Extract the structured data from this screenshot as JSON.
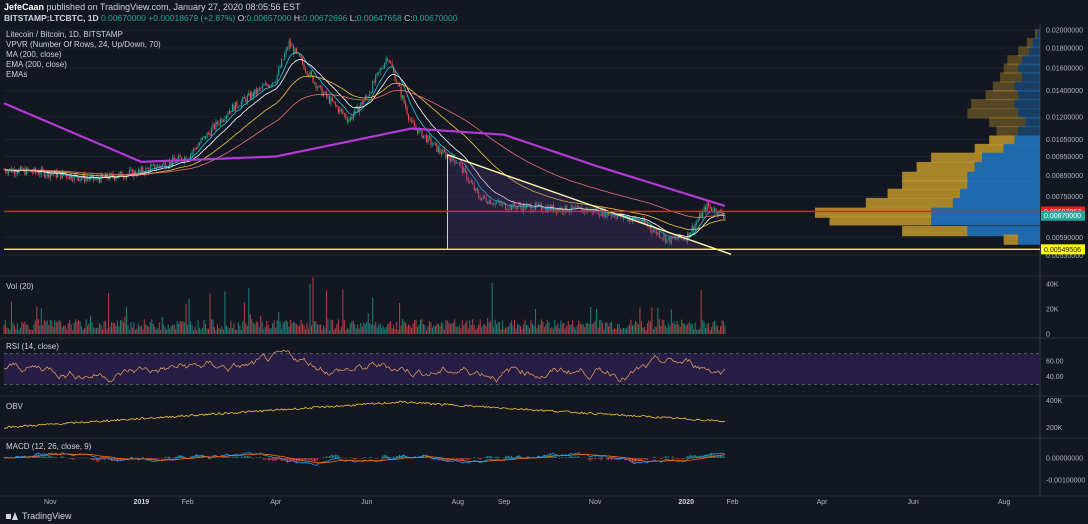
{
  "header": {
    "author": "JefeCaan",
    "published_text": "published on TradingView.com, January 27, 2020 08:05:56 EST",
    "symbol": "BITSTAMP:LTCBTC, 1D",
    "price": "0.00670000",
    "change": "+0.00018679 (+2.87%)",
    "ohlc_o_label": "O:",
    "ohlc_o": "0.00657000",
    "ohlc_h_label": "H:",
    "ohlc_h": "0.00672696",
    "ohlc_l_label": "L:",
    "ohlc_l": "0.00647658",
    "ohlc_c_label": "C:",
    "ohlc_c": "0.00670000"
  },
  "legend": {
    "title": "Litecoin / Bitcoin, 1D, BITSTAMP",
    "vpvr": "VPVR (Number Of Rows, 24, Up/Down, 70)",
    "ma": "MA (200, close)",
    "ema": "EMA (200, close)",
    "emas": "EMAs"
  },
  "panes": {
    "vol_label": "Vol (20)",
    "rsi_label": "RSI (14, close)",
    "obv_label": "OBV",
    "macd_label": "MACD (12, 26, close, 9)"
  },
  "footer": {
    "brand": "TradingView"
  },
  "colors": {
    "background": "#131722",
    "up": "#26a69a",
    "down": "#ef5350",
    "ma_purple": "#b33ad6",
    "red_line": "#ff1a1a",
    "yellow_line": "#ffff00",
    "vpvr_up": "#1f6fb5",
    "vpvr_down": "#b8902a"
  },
  "chart_data": {
    "type": "candlestick",
    "title": "Litecoin / Bitcoin, 1D, BITSTAMP",
    "x_ticks": [
      "Nov",
      "2019",
      "Feb",
      "Apr",
      "Jun",
      "Aug",
      "Sep",
      "Nov",
      "2020",
      "Feb",
      "Apr",
      "Jun",
      "Aug"
    ],
    "x_tick_dates": [
      "2018-11-01",
      "2019-01-01",
      "2019-02-01",
      "2019-04-01",
      "2019-06-01",
      "2019-08-01",
      "2019-09-01",
      "2019-11-01",
      "2020-01-01",
      "2020-02-01",
      "2020-04-01",
      "2020-06-01",
      "2020-08-01"
    ],
    "price_axis": {
      "ticks": [
        "0.02000000",
        "0.01800000",
        "0.01600000",
        "0.01400000",
        "0.01200000",
        "0.01050000",
        "0.00950000",
        "0.00850000",
        "0.00750000",
        "0.00590000",
        "0.00530000"
      ],
      "scale": "log",
      "range": [
        0.0051,
        0.0205
      ]
    },
    "price_labels": [
      {
        "value": "0.00687067",
        "color": "#ff1a1a"
      },
      {
        "value": "0.00670000",
        "color": "#26a69a"
      },
      {
        "value": "0.00549506",
        "color": "#ffff00"
      }
    ],
    "close_series_approx": {
      "dates": [
        "2018-10-01",
        "2018-11-01",
        "2018-12-01",
        "2019-01-01",
        "2019-02-01",
        "2019-03-01",
        "2019-04-01",
        "2019-04-10",
        "2019-05-01",
        "2019-05-20",
        "2019-06-01",
        "2019-06-15",
        "2019-07-01",
        "2019-07-20",
        "2019-08-01",
        "2019-08-15",
        "2019-09-01",
        "2019-10-01",
        "2019-11-01",
        "2019-12-01",
        "2019-12-20",
        "2020-01-01",
        "2020-01-15",
        "2020-01-27"
      ],
      "values": [
        0.0088,
        0.0086,
        0.0083,
        0.0087,
        0.0095,
        0.0125,
        0.015,
        0.0185,
        0.014,
        0.0118,
        0.0135,
        0.0172,
        0.0115,
        0.0098,
        0.0092,
        0.0075,
        0.0071,
        0.007,
        0.0069,
        0.0065,
        0.0058,
        0.0059,
        0.0071,
        0.0067
      ]
    },
    "ma200_approx": {
      "dates": [
        "2018-10-01",
        "2019-01-01",
        "2019-04-01",
        "2019-07-01",
        "2019-09-01",
        "2019-11-01",
        "2020-01-27"
      ],
      "values": [
        0.013,
        0.0092,
        0.0095,
        0.0112,
        0.0108,
        0.009,
        0.0071
      ]
    },
    "horizontal_levels": [
      {
        "value": 0.00687067,
        "color": "#ff1a1a"
      },
      {
        "value": 0.00549506,
        "color": "#ffff00"
      }
    ],
    "trendline": {
      "from": [
        "2019-07-25",
        0.0096
      ],
      "to": [
        "2020-01-27",
        0.0054
      ]
    },
    "vpvr_rows": {
      "prices": [
        0.0195,
        0.0185,
        0.0176,
        0.0167,
        0.0159,
        0.0151,
        0.0143,
        0.0136,
        0.0129,
        0.0122,
        0.0116,
        0.011,
        0.0104,
        0.0099,
        0.0094,
        0.0089,
        0.0084,
        0.008,
        0.0076,
        0.0072,
        0.0068,
        0.0065,
        0.0061,
        0.0058
      ],
      "up_volume": [
        0.4,
        1,
        1.5,
        2.5,
        3,
        2.5,
        3.5,
        3,
        3.5,
        3,
        2,
        3,
        3.5,
        5,
        8,
        9,
        10,
        10,
        11,
        12,
        15,
        15,
        10,
        3
      ],
      "down_volume": [
        0.3,
        0.8,
        1.5,
        2,
        2,
        3,
        3,
        4.5,
        6,
        7,
        5,
        3,
        3.5,
        4,
        7,
        8,
        9,
        9,
        10,
        12,
        16,
        14,
        9,
        2
      ]
    },
    "volume_axis": {
      "ticks": [
        "40K",
        "20K",
        "0"
      ]
    },
    "rsi": {
      "levels": [
        70,
        30
      ],
      "ticks": [
        "60.00",
        "40.00"
      ],
      "last": 59
    },
    "obv_axis": {
      "ticks": [
        "400K",
        "200K"
      ]
    },
    "macd_axis": {
      "ticks": [
        "0.00000000",
        "-0.00100000"
      ]
    }
  }
}
